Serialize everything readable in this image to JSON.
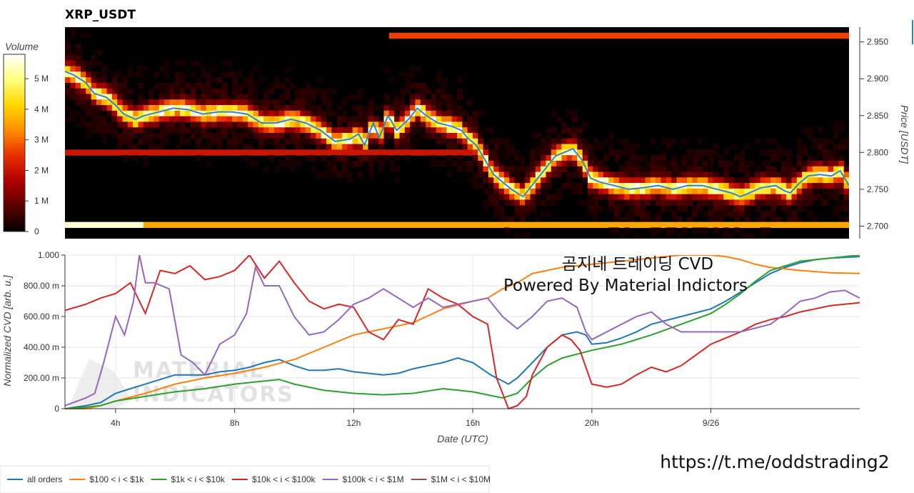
{
  "chart_data": [
    {
      "type": "heatmap",
      "title": "XRP_USDT",
      "ylabel": "Price [USDT]",
      "ylim": [
        2.683,
        2.97
      ],
      "y_ticks": [
        {
          "value": 2.95,
          "label": "2.950"
        },
        {
          "value": 2.9,
          "label": "2.900"
        },
        {
          "value": 2.85,
          "label": "2.850"
        },
        {
          "value": 2.8,
          "label": "2.800"
        },
        {
          "value": 2.75,
          "label": "2.750"
        },
        {
          "value": 2.7,
          "label": "2.700"
        }
      ],
      "colorbar": {
        "label": "Volume",
        "range": [
          0,
          5800000
        ],
        "ticks": [
          {
            "value": 0,
            "label": "0"
          },
          {
            "value": 1000000,
            "label": "1 M"
          },
          {
            "value": 2000000,
            "label": "2 M"
          },
          {
            "value": 3000000,
            "label": "3 M"
          },
          {
            "value": 4000000,
            "label": "4 M"
          },
          {
            "value": 5000000,
            "label": "5 M"
          }
        ],
        "colors": [
          "#000000",
          "#5a0000",
          "#b00000",
          "#e83000",
          "#ff8c00",
          "#ffd800",
          "#ffff80",
          "#ffffff"
        ]
      },
      "x_range_hours": [
        2.3,
        29.0
      ],
      "price_line": {
        "color": "#2f86c8",
        "points": [
          [
            2.3,
            2.91
          ],
          [
            2.6,
            2.905
          ],
          [
            3.0,
            2.895
          ],
          [
            3.3,
            2.88
          ],
          [
            3.7,
            2.875
          ],
          [
            4.0,
            2.865
          ],
          [
            4.3,
            2.852
          ],
          [
            4.7,
            2.845
          ],
          [
            5.0,
            2.85
          ],
          [
            5.5,
            2.855
          ],
          [
            6.0,
            2.86
          ],
          [
            6.5,
            2.858
          ],
          [
            7.0,
            2.852
          ],
          [
            7.5,
            2.855
          ],
          [
            8.0,
            2.855
          ],
          [
            8.5,
            2.852
          ],
          [
            9.0,
            2.84
          ],
          [
            9.5,
            2.84
          ],
          [
            10.0,
            2.845
          ],
          [
            10.5,
            2.84
          ],
          [
            11.0,
            2.83
          ],
          [
            11.5,
            2.815
          ],
          [
            12.0,
            2.818
          ],
          [
            12.3,
            2.825
          ],
          [
            12.5,
            2.81
          ],
          [
            12.8,
            2.84
          ],
          [
            13.0,
            2.82
          ],
          [
            13.3,
            2.85
          ],
          [
            13.6,
            2.83
          ],
          [
            14.0,
            2.845
          ],
          [
            14.3,
            2.86
          ],
          [
            14.6,
            2.85
          ],
          [
            15.0,
            2.84
          ],
          [
            15.5,
            2.835
          ],
          [
            15.8,
            2.83
          ],
          [
            16.0,
            2.82
          ],
          [
            16.3,
            2.81
          ],
          [
            16.6,
            2.79
          ],
          [
            16.9,
            2.77
          ],
          [
            17.2,
            2.76
          ],
          [
            17.5,
            2.75
          ],
          [
            17.9,
            2.74
          ],
          [
            18.2,
            2.755
          ],
          [
            18.5,
            2.77
          ],
          [
            18.8,
            2.785
          ],
          [
            19.0,
            2.795
          ],
          [
            19.3,
            2.8
          ],
          [
            19.6,
            2.805
          ],
          [
            19.9,
            2.79
          ],
          [
            20.2,
            2.765
          ],
          [
            20.5,
            2.76
          ],
          [
            21.0,
            2.755
          ],
          [
            21.5,
            2.75
          ],
          [
            22.0,
            2.752
          ],
          [
            22.5,
            2.755
          ],
          [
            23.0,
            2.75
          ],
          [
            23.5,
            2.755
          ],
          [
            24.0,
            2.755
          ],
          [
            24.5,
            2.75
          ],
          [
            25.0,
            2.745
          ],
          [
            25.3,
            2.74
          ],
          [
            25.6,
            2.745
          ],
          [
            26.0,
            2.752
          ],
          [
            26.5,
            2.755
          ],
          [
            26.8,
            2.748
          ],
          [
            27.0,
            2.745
          ],
          [
            27.3,
            2.758
          ],
          [
            27.6,
            2.768
          ],
          [
            28.0,
            2.77
          ],
          [
            28.4,
            2.768
          ],
          [
            28.7,
            2.775
          ],
          [
            29.0,
            2.755
          ]
        ]
      }
    },
    {
      "type": "line",
      "xlabel": "Date (UTC)",
      "ylabel": "Normalized CVD [arb. u.]",
      "xlim": [
        2.3,
        29.0
      ],
      "ylim": [
        0,
        1
      ],
      "x_ticks": [
        {
          "value": 4,
          "label": "4h"
        },
        {
          "value": 8,
          "label": "8h"
        },
        {
          "value": 12,
          "label": "12h"
        },
        {
          "value": 16,
          "label": "16h"
        },
        {
          "value": 20,
          "label": "20h"
        },
        {
          "value": 24,
          "label": "9/26"
        }
      ],
      "y_ticks": [
        {
          "value": 0,
          "label": "0"
        },
        {
          "value": 0.2,
          "label": "200.00 m"
        },
        {
          "value": 0.4,
          "label": "400.00 m"
        },
        {
          "value": 0.6,
          "label": "600.00 m"
        },
        {
          "value": 0.8,
          "label": "800.00 m"
        },
        {
          "value": 1.0,
          "label": "1.000"
        }
      ],
      "series": [
        {
          "name": "all orders",
          "color": "#1f77b4",
          "x": [
            2.3,
            3.0,
            3.5,
            4.0,
            4.5,
            5.0,
            5.5,
            6.0,
            6.5,
            7.0,
            7.5,
            8.0,
            8.5,
            9.0,
            9.5,
            10.0,
            10.5,
            11.0,
            11.5,
            12.0,
            12.5,
            13.0,
            13.5,
            14.0,
            14.5,
            15.0,
            15.5,
            16.0,
            16.3,
            16.6,
            16.9,
            17.2,
            17.5,
            18.0,
            18.5,
            19.0,
            19.5,
            19.8,
            20.0,
            20.5,
            21.0,
            21.5,
            22.0,
            23.0,
            24.0,
            24.5,
            25.0,
            25.5,
            26.0,
            26.5,
            27.0,
            27.5,
            28.0,
            28.5,
            29.0
          ],
          "y": [
            0.0,
            0.02,
            0.04,
            0.1,
            0.13,
            0.16,
            0.19,
            0.22,
            0.22,
            0.22,
            0.24,
            0.25,
            0.27,
            0.3,
            0.32,
            0.28,
            0.25,
            0.25,
            0.26,
            0.24,
            0.23,
            0.22,
            0.23,
            0.26,
            0.28,
            0.3,
            0.33,
            0.3,
            0.26,
            0.22,
            0.19,
            0.16,
            0.2,
            0.3,
            0.4,
            0.48,
            0.5,
            0.48,
            0.42,
            0.43,
            0.46,
            0.5,
            0.55,
            0.6,
            0.65,
            0.7,
            0.76,
            0.82,
            0.88,
            0.92,
            0.95,
            0.97,
            0.98,
            0.985,
            0.99
          ]
        },
        {
          "name": "$100 < i < $1k",
          "color": "#ff7f0e",
          "x": [
            2.3,
            3.0,
            3.5,
            4.0,
            5.0,
            6.0,
            7.0,
            8.0,
            9.0,
            10.0,
            11.0,
            12.0,
            12.5,
            13.0,
            14.0,
            15.0,
            16.0,
            16.5,
            17.0,
            17.5,
            18.0,
            19.0,
            20.0,
            21.0,
            22.0,
            23.0,
            24.0,
            24.5,
            25.0,
            25.5,
            26.0,
            27.0,
            28.0,
            29.0
          ],
          "y": [
            0.0,
            0.0,
            0.02,
            0.05,
            0.1,
            0.16,
            0.2,
            0.23,
            0.27,
            0.32,
            0.4,
            0.48,
            0.5,
            0.52,
            0.56,
            0.65,
            0.7,
            0.72,
            0.78,
            0.82,
            0.88,
            0.92,
            0.94,
            0.96,
            0.98,
            1.0,
            1.0,
            0.99,
            0.97,
            0.94,
            0.92,
            0.9,
            0.885,
            0.88
          ]
        },
        {
          "name": "$1k < i < $10k",
          "color": "#2ca02c",
          "x": [
            2.3,
            3.0,
            3.5,
            4.0,
            5.0,
            6.0,
            7.0,
            8.0,
            9.0,
            9.5,
            10.0,
            11.0,
            12.0,
            13.0,
            14.0,
            15.0,
            16.0,
            16.5,
            17.0,
            17.5,
            18.0,
            18.5,
            19.0,
            20.0,
            21.0,
            22.0,
            23.0,
            24.0,
            24.5,
            25.0,
            25.5,
            26.0,
            27.0,
            28.0,
            29.0
          ],
          "y": [
            0.0,
            0.01,
            0.02,
            0.05,
            0.08,
            0.11,
            0.13,
            0.16,
            0.18,
            0.19,
            0.16,
            0.12,
            0.1,
            0.09,
            0.1,
            0.13,
            0.11,
            0.09,
            0.07,
            0.1,
            0.2,
            0.28,
            0.33,
            0.38,
            0.42,
            0.48,
            0.55,
            0.62,
            0.68,
            0.75,
            0.83,
            0.9,
            0.96,
            0.98,
            1.0
          ]
        },
        {
          "name": "$10k < i < $100k",
          "color": "#d62728",
          "x": [
            2.3,
            3.0,
            3.5,
            4.0,
            4.5,
            5.0,
            5.5,
            6.0,
            6.5,
            7.0,
            7.5,
            8.0,
            8.5,
            9.0,
            9.5,
            10.0,
            10.5,
            11.0,
            11.5,
            12.0,
            12.5,
            13.0,
            13.5,
            14.0,
            14.5,
            15.0,
            15.5,
            16.0,
            16.5,
            16.8,
            17.0,
            17.2,
            17.5,
            17.8,
            18.0,
            18.5,
            19.0,
            19.3,
            19.6,
            20.0,
            20.5,
            21.0,
            21.5,
            22.0,
            22.5,
            23.0,
            23.5,
            24.0,
            24.5,
            25.0,
            25.5,
            26.0,
            26.5,
            27.0,
            27.5,
            28.0,
            28.5,
            29.0
          ],
          "y": [
            0.64,
            0.68,
            0.72,
            0.75,
            0.82,
            0.62,
            0.9,
            0.88,
            0.93,
            0.84,
            0.86,
            0.9,
            1.0,
            0.85,
            0.96,
            0.82,
            0.7,
            0.65,
            0.68,
            0.66,
            0.5,
            0.45,
            0.58,
            0.55,
            0.78,
            0.72,
            0.68,
            0.6,
            0.55,
            0.2,
            0.1,
            0.0,
            0.02,
            0.08,
            0.22,
            0.4,
            0.48,
            0.45,
            0.38,
            0.16,
            0.14,
            0.16,
            0.22,
            0.27,
            0.24,
            0.28,
            0.35,
            0.42,
            0.46,
            0.5,
            0.55,
            0.58,
            0.6,
            0.63,
            0.65,
            0.67,
            0.68,
            0.69
          ]
        },
        {
          "name": "$100k < i < $1M",
          "color": "#9467bd",
          "x": [
            2.3,
            3.0,
            3.3,
            3.6,
            4.0,
            4.3,
            4.6,
            4.8,
            5.0,
            5.3,
            5.8,
            6.2,
            6.6,
            7.0,
            7.5,
            8.0,
            8.4,
            8.7,
            9.0,
            9.5,
            10.0,
            10.5,
            11.0,
            11.5,
            12.0,
            12.5,
            13.0,
            13.5,
            14.0,
            14.5,
            15.0,
            15.5,
            16.0,
            16.5,
            17.0,
            17.5,
            18.0,
            18.5,
            19.0,
            19.5,
            19.8,
            20.0,
            20.5,
            21.0,
            21.5,
            22.0,
            22.5,
            23.0,
            24.0,
            25.0,
            26.0,
            26.5,
            27.0,
            27.5,
            28.0,
            28.5,
            29.0
          ],
          "y": [
            0.02,
            0.07,
            0.1,
            0.3,
            0.6,
            0.48,
            0.7,
            1.0,
            0.82,
            0.82,
            0.78,
            0.35,
            0.3,
            0.22,
            0.42,
            0.48,
            0.62,
            0.92,
            0.8,
            0.8,
            0.6,
            0.48,
            0.5,
            0.58,
            0.68,
            0.72,
            0.78,
            0.72,
            0.66,
            0.72,
            0.66,
            0.68,
            0.7,
            0.72,
            0.6,
            0.52,
            0.6,
            0.7,
            0.72,
            0.66,
            0.5,
            0.45,
            0.5,
            0.55,
            0.6,
            0.63,
            0.55,
            0.5,
            0.5,
            0.5,
            0.55,
            0.62,
            0.7,
            0.72,
            0.76,
            0.77,
            0.72
          ]
        },
        {
          "name": "$1M < i < $10M",
          "color": "#8c564b",
          "x": [],
          "y": []
        }
      ]
    }
  ],
  "overlay": {
    "line1": "곰지네 트레이딩 CVD",
    "line2": "Powered By Material Indictors",
    "url": "https://t.me/oddstrading2",
    "watermark_line1": "MATERIAL",
    "watermark_line2": "INDICATORS"
  }
}
